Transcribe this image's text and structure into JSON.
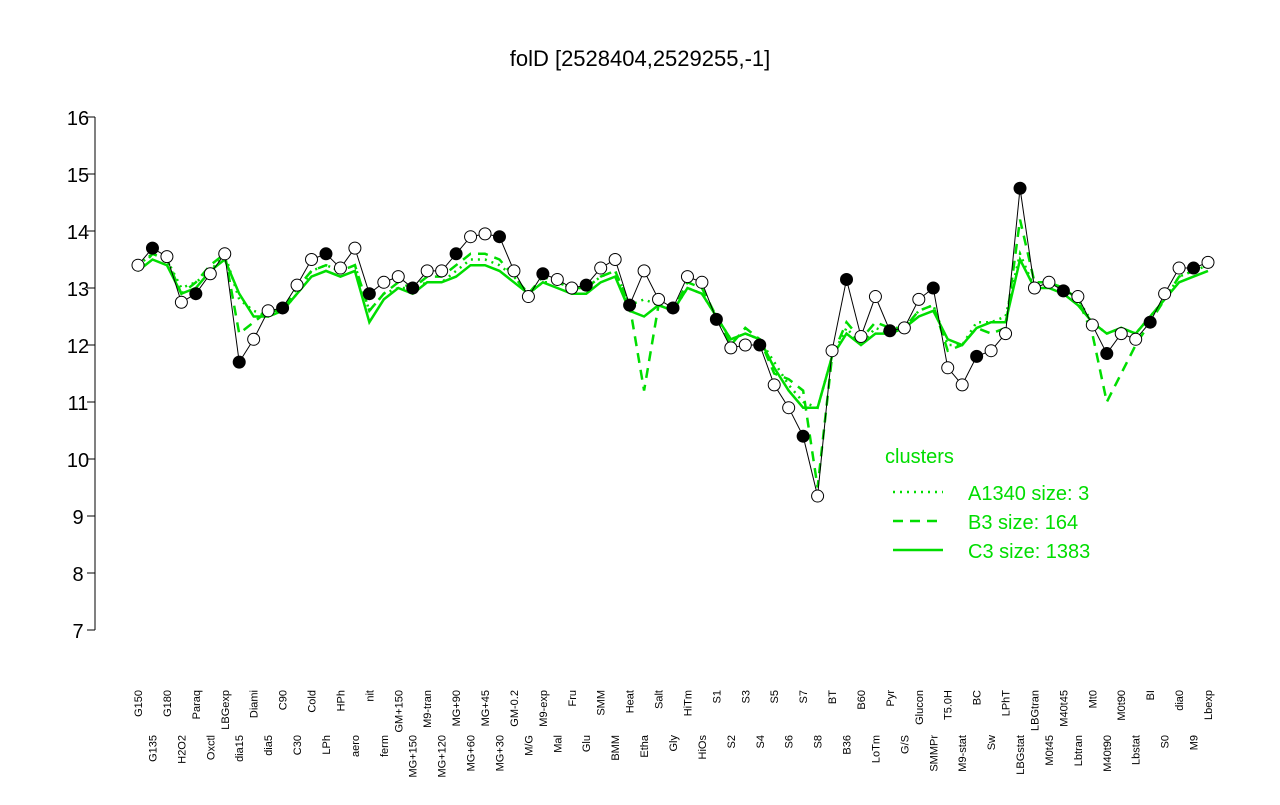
{
  "chart_data": {
    "type": "line",
    "title": "folD [2528404,2529255,-1]",
    "categories": [
      "G150",
      "G135",
      "G180",
      "H2O2",
      "Paraq",
      "Oxctl",
      "LBGexp",
      "dia15",
      "Diami",
      "dia5",
      "C90",
      "C30",
      "Cold",
      "LPh",
      "HPh",
      "aero",
      "nit",
      "ferm",
      "GM+150",
      "MG+150",
      "M9-tran",
      "MG+120",
      "MG+90",
      "MG+60",
      "MG+45",
      "MG+30",
      "GM-0.2",
      "M/G",
      "M9-exp",
      "Mal",
      "Fru",
      "Glu",
      "SMM",
      "BMM",
      "Heat",
      "Etha",
      "Salt",
      "Gly",
      "HiTm",
      "HiOs",
      "S1",
      "S2",
      "S3",
      "S4",
      "S5",
      "S6",
      "S7",
      "S8",
      "BT",
      "B36",
      "B60",
      "LoTm",
      "Pyr",
      "G/S",
      "Glucon",
      "SMMPr",
      "T5.0H",
      "M9-stat",
      "BC",
      "Sw",
      "LPhT",
      "LBGstat",
      "LBGtran",
      "M0t45",
      "M40t45",
      "Lbtran",
      "Mt0",
      "M40t90",
      "M0t90",
      "Lbstat",
      "BI",
      "S0",
      "dia0",
      "M9",
      "Lbexp"
    ],
    "values": [
      13.4,
      13.7,
      13.55,
      12.75,
      12.9,
      13.25,
      13.6,
      11.7,
      12.1,
      12.6,
      12.65,
      13.05,
      13.5,
      13.6,
      13.35,
      13.7,
      12.9,
      13.1,
      13.2,
      13.0,
      13.3,
      13.3,
      13.6,
      13.9,
      13.95,
      13.9,
      13.3,
      12.85,
      13.25,
      13.15,
      13.0,
      13.05,
      13.35,
      13.5,
      12.7,
      13.3,
      12.8,
      12.65,
      13.2,
      13.1,
      12.45,
      11.95,
      12.0,
      12.0,
      11.3,
      10.9,
      10.4,
      9.35,
      11.9,
      13.15,
      12.15,
      12.85,
      12.25,
      12.3,
      12.8,
      13.0,
      11.6,
      11.3,
      11.8,
      11.9,
      12.2,
      14.75,
      13.0,
      13.1,
      12.95,
      12.85,
      12.35,
      11.85,
      12.2,
      12.1,
      12.4,
      12.9,
      13.35,
      13.35,
      13.45
    ],
    "series": [
      {
        "name": "A1340 size: 3",
        "color": "#00dd00",
        "style": "dotted",
        "values": [
          13.4,
          13.6,
          13.5,
          13.0,
          13.1,
          13.3,
          13.6,
          12.8,
          12.6,
          12.5,
          12.6,
          12.9,
          13.3,
          13.4,
          13.3,
          13.4,
          12.6,
          12.9,
          13.0,
          13.0,
          13.1,
          13.1,
          13.3,
          13.5,
          13.5,
          13.4,
          13.2,
          12.9,
          13.1,
          13.1,
          13.0,
          13.0,
          13.2,
          13.3,
          12.7,
          12.8,
          12.7,
          12.6,
          13.0,
          12.9,
          12.5,
          12.1,
          12.2,
          12.1,
          11.7,
          11.3,
          11.0,
          10.9,
          11.8,
          12.3,
          12.0,
          12.3,
          12.2,
          12.3,
          12.6,
          12.7,
          12.0,
          12.0,
          12.4,
          12.4,
          12.5,
          13.6,
          13.0,
          13.1,
          13.0,
          12.8,
          12.4,
          12.2,
          12.3,
          12.2,
          12.5,
          12.8,
          13.2,
          13.3,
          13.4
        ]
      },
      {
        "name": "B3 size: 164",
        "color": "#00dd00",
        "style": "dashed",
        "values": [
          13.3,
          13.6,
          13.5,
          12.9,
          13.1,
          13.4,
          13.6,
          12.2,
          12.4,
          12.6,
          12.6,
          13.0,
          13.3,
          13.4,
          13.3,
          13.4,
          12.6,
          12.9,
          13.1,
          13.0,
          13.2,
          13.2,
          13.4,
          13.6,
          13.6,
          13.5,
          13.2,
          12.9,
          13.2,
          13.1,
          13.0,
          13.0,
          13.2,
          13.3,
          12.7,
          11.2,
          12.7,
          12.6,
          13.1,
          13.0,
          12.5,
          12.0,
          12.3,
          12.1,
          11.5,
          11.4,
          11.2,
          9.5,
          11.8,
          12.4,
          12.1,
          12.4,
          12.3,
          12.3,
          12.6,
          12.7,
          11.9,
          12.0,
          12.3,
          12.2,
          12.3,
          14.2,
          13.1,
          13.1,
          13.0,
          12.8,
          12.2,
          11.0,
          11.5,
          12.0,
          12.4,
          12.8,
          13.2,
          13.3,
          13.4
        ]
      },
      {
        "name": "C3 size: 1383",
        "color": "#00dd00",
        "style": "solid",
        "values": [
          13.3,
          13.5,
          13.4,
          12.9,
          13.0,
          13.3,
          13.5,
          12.9,
          12.5,
          12.5,
          12.6,
          12.9,
          13.2,
          13.3,
          13.2,
          13.3,
          12.4,
          12.8,
          13.0,
          12.9,
          13.1,
          13.1,
          13.2,
          13.4,
          13.4,
          13.3,
          13.1,
          12.9,
          13.1,
          13.0,
          12.9,
          12.9,
          13.1,
          13.2,
          12.6,
          12.5,
          12.7,
          12.6,
          13.0,
          12.9,
          12.5,
          12.1,
          12.2,
          12.1,
          11.6,
          11.2,
          10.9,
          10.9,
          11.8,
          12.2,
          12.0,
          12.2,
          12.2,
          12.3,
          12.5,
          12.6,
          12.1,
          12.0,
          12.3,
          12.4,
          12.4,
          13.5,
          13.0,
          13.0,
          12.9,
          12.7,
          12.4,
          12.2,
          12.3,
          12.2,
          12.5,
          12.8,
          13.1,
          13.2,
          13.3
        ]
      }
    ],
    "legend_title": "clusters",
    "legend_position": "right",
    "ylim": [
      7,
      16
    ],
    "yticks": [
      7,
      8,
      9,
      10,
      11,
      12,
      13,
      14,
      15,
      16
    ]
  }
}
